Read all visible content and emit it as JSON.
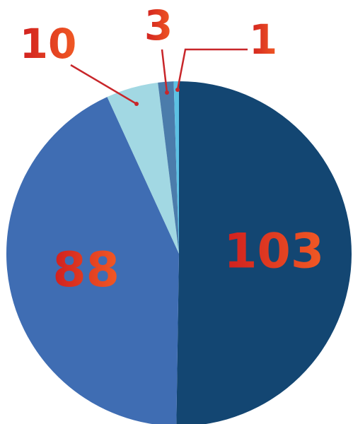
{
  "chart_data": {
    "type": "pie",
    "values": [
      103,
      88,
      10,
      3,
      1
    ],
    "colors": [
      "#134672",
      "#3f6db3",
      "#a2d8e3",
      "#4b7cab",
      "#5cc1e3"
    ]
  }
}
